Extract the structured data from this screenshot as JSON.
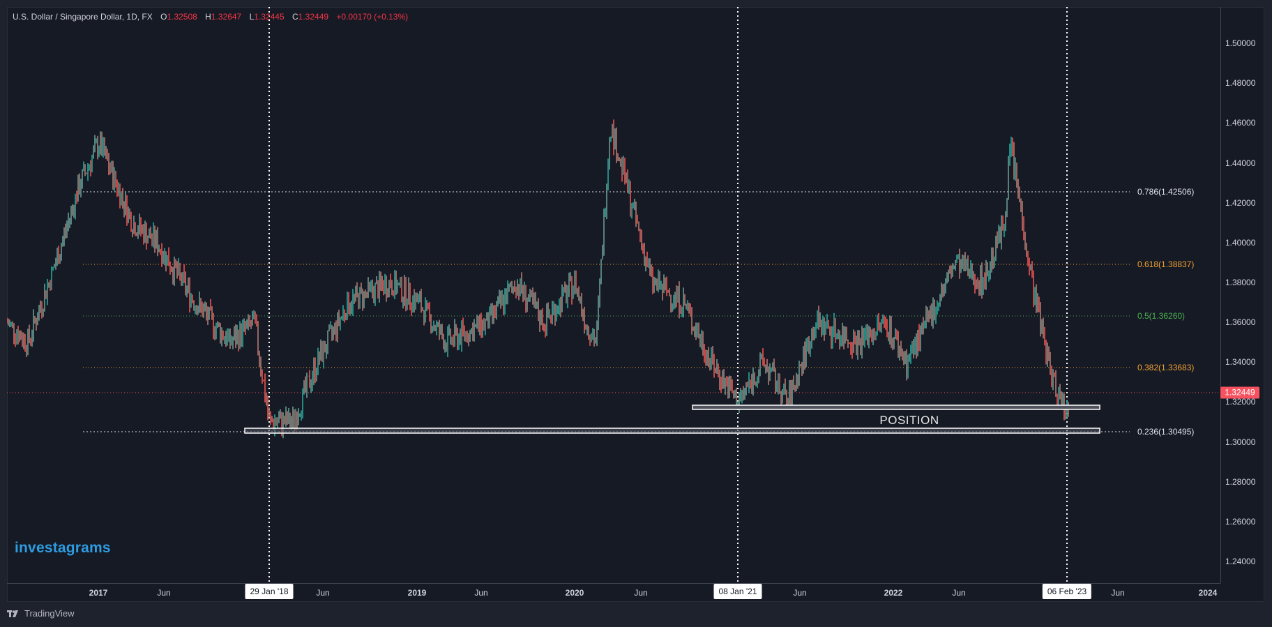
{
  "legend": {
    "title": "U.S. Dollar / Singapore Dollar, 1D, FX",
    "open_label": "O",
    "open": "1.32508",
    "high_label": "H",
    "high": "1.32647",
    "low_label": "L",
    "low": "1.32445",
    "close_label": "C",
    "close": "1.32449",
    "change": "+0.00170 (+0.13%)"
  },
  "price_tag": "1.32449",
  "position_label": "POSITION",
  "brand_watermark": "investagrams",
  "footer": {
    "logo_text": "TradingView"
  },
  "x_highlight_labels": [
    "29 Jan '18",
    "08 Jan '21",
    "06 Feb '23"
  ],
  "colors": {
    "up": "#26a69a",
    "down": "#ef5350",
    "price_line": "#f7525f",
    "fib_white": "#e0e3eb",
    "fib_orange": "#f0a030",
    "fib_green": "#4caf50"
  },
  "chart_data": {
    "type": "line",
    "title": "U.S. Dollar / Singapore Dollar, 1D, FX",
    "xlabel": "",
    "ylabel": "",
    "ylim": [
      1.23,
      1.51
    ],
    "y_ticks": [
      "1.50000",
      "1.48000",
      "1.46000",
      "1.44000",
      "1.42000",
      "1.40000",
      "1.38000",
      "1.36000",
      "1.34000",
      "1.32000",
      "1.30000",
      "1.28000",
      "1.26000",
      "1.24000"
    ],
    "x_ticks": [
      "2017",
      "Jun",
      "29 Jan '18",
      "Jun",
      "2019",
      "Jun",
      "2020",
      "Jun",
      "08 Jan '21",
      "Jun",
      "2022",
      "Jun",
      "06 Feb '23",
      "Jun",
      "2024"
    ],
    "series": [
      {
        "name": "USDSGD",
        "x": [
          "2016-08",
          "2016-10",
          "2016-11",
          "2016-12",
          "2017-01",
          "2017-03",
          "2017-05",
          "2017-07",
          "2017-09",
          "2017-11",
          "2018-01",
          "2018-03",
          "2018-05",
          "2018-07",
          "2018-09",
          "2018-11",
          "2019-01",
          "2019-03",
          "2019-05",
          "2019-07",
          "2019-09",
          "2019-11",
          "2020-01",
          "2020-03",
          "2020-05",
          "2020-07",
          "2020-09",
          "2020-11",
          "2021-01",
          "2021-03",
          "2021-05",
          "2021-07",
          "2021-09",
          "2021-11",
          "2022-01",
          "2022-03",
          "2022-05",
          "2022-07",
          "2022-09",
          "2022-10",
          "2022-12",
          "2023-01",
          "2023-02"
        ],
        "values": [
          1.36,
          1.35,
          1.39,
          1.43,
          1.45,
          1.41,
          1.4,
          1.37,
          1.35,
          1.36,
          1.31,
          1.31,
          1.34,
          1.37,
          1.38,
          1.37,
          1.35,
          1.36,
          1.38,
          1.36,
          1.38,
          1.36,
          1.35,
          1.46,
          1.42,
          1.38,
          1.37,
          1.34,
          1.32,
          1.34,
          1.32,
          1.36,
          1.35,
          1.36,
          1.34,
          1.36,
          1.39,
          1.38,
          1.41,
          1.45,
          1.38,
          1.33,
          1.315
        ]
      }
    ],
    "annotations": {
      "fibonacci": [
        {
          "level": "0.786",
          "price": 1.42506,
          "label": "0.786(1.42506)"
        },
        {
          "level": "0.618",
          "price": 1.38837,
          "label": "0.618(1.38837)"
        },
        {
          "level": "0.5",
          "price": 1.3626,
          "label": "0.5(1.36260)"
        },
        {
          "level": "0.382",
          "price": 1.33683,
          "label": "0.382(1.33683)"
        },
        {
          "level": "0.236",
          "price": 1.30495,
          "label": "0.236(1.30495)"
        }
      ],
      "last_price": 1.32449,
      "vertical_markers": [
        "29 Jan '18",
        "08 Jan '21",
        "06 Feb '23"
      ],
      "position_text": "POSITION"
    },
    "grid": false,
    "legend_position": "top-left"
  }
}
